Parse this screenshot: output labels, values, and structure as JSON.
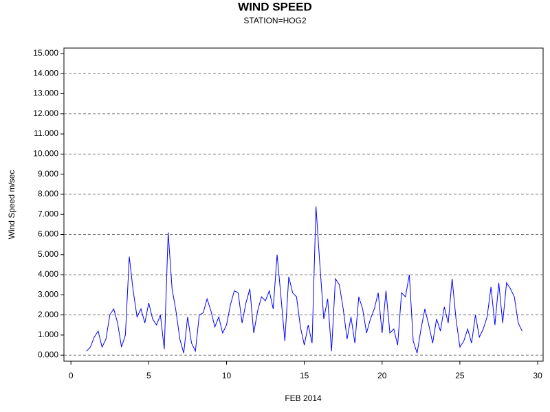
{
  "chart_data": {
    "type": "line",
    "title": "WIND SPEED",
    "subtitle": "STATION=HOG2",
    "x_label": "FEB 2014",
    "y_label": "Wind Speed m/sec",
    "x": [
      1.0,
      1.25,
      1.5,
      1.75,
      2.0,
      2.25,
      2.5,
      2.75,
      3.0,
      3.25,
      3.5,
      3.75,
      4.0,
      4.25,
      4.5,
      4.75,
      5.0,
      5.25,
      5.5,
      5.75,
      6.0,
      6.25,
      6.5,
      6.75,
      7.0,
      7.25,
      7.5,
      7.75,
      8.0,
      8.25,
      8.5,
      8.75,
      9.0,
      9.25,
      9.5,
      9.75,
      10.0,
      10.25,
      10.5,
      10.75,
      11.0,
      11.25,
      11.5,
      11.75,
      12.0,
      12.25,
      12.5,
      12.75,
      13.0,
      13.25,
      13.5,
      13.75,
      14.0,
      14.25,
      14.5,
      14.75,
      15.0,
      15.25,
      15.5,
      15.75,
      16.0,
      16.25,
      16.5,
      16.75,
      17.0,
      17.25,
      17.5,
      17.75,
      18.0,
      18.25,
      18.5,
      18.75,
      19.0,
      19.25,
      19.5,
      19.75,
      20.0,
      20.25,
      20.5,
      20.75,
      21.0,
      21.25,
      21.5,
      21.75,
      22.0,
      22.25,
      22.5,
      22.75,
      23.0,
      23.25,
      23.5,
      23.75,
      24.0,
      24.25,
      24.5,
      24.75,
      25.0,
      25.25,
      25.5,
      25.75,
      26.0,
      26.25,
      26.5,
      26.75,
      27.0,
      27.25,
      27.5,
      27.75,
      28.0,
      28.25,
      28.5,
      28.75,
      29.0
    ],
    "series": [
      {
        "name": "Wind Speed",
        "color": "#0000ff",
        "values": [
          0.2,
          0.4,
          0.9,
          1.2,
          0.4,
          0.8,
          2.0,
          2.3,
          1.6,
          0.4,
          1.0,
          4.9,
          3.2,
          1.9,
          2.3,
          1.6,
          2.6,
          1.8,
          1.5,
          2.0,
          0.3,
          6.1,
          3.3,
          2.2,
          0.8,
          0.1,
          1.9,
          0.6,
          0.2,
          2.0,
          2.1,
          2.8,
          2.2,
          1.4,
          1.9,
          1.1,
          1.5,
          2.5,
          3.2,
          3.1,
          1.6,
          2.6,
          3.3,
          1.1,
          2.2,
          2.9,
          2.7,
          3.2,
          2.3,
          5.0,
          2.9,
          0.7,
          3.9,
          3.1,
          2.9,
          1.4,
          0.5,
          1.5,
          0.6,
          7.4,
          4.5,
          1.8,
          2.8,
          0.2,
          3.8,
          3.5,
          2.3,
          0.8,
          1.9,
          0.6,
          2.9,
          2.3,
          1.1,
          1.8,
          2.3,
          3.1,
          1.1,
          3.2,
          1.1,
          1.3,
          0.5,
          3.1,
          2.9,
          4.0,
          0.7,
          0.1,
          1.3,
          2.3,
          1.5,
          0.6,
          1.8,
          1.2,
          2.4,
          1.6,
          3.8,
          1.8,
          0.4,
          0.7,
          1.3,
          0.6,
          2.0,
          0.9,
          1.3,
          1.9,
          3.4,
          1.5,
          3.6,
          1.6,
          3.6,
          3.3,
          2.9,
          1.6,
          1.2
        ]
      }
    ],
    "xlim": [
      -0.45,
      30.35
    ],
    "xticks": [
      0,
      5,
      10,
      15,
      20,
      25,
      30
    ],
    "ylim": [
      -0.3,
      15.27
    ],
    "yticks": [
      {
        "value": 0,
        "label": "0.000"
      },
      {
        "value": 1,
        "label": "1.000"
      },
      {
        "value": 2,
        "label": "2.000"
      },
      {
        "value": 3,
        "label": "3.000"
      },
      {
        "value": 4,
        "label": "4.000"
      },
      {
        "value": 5,
        "label": "5.000"
      },
      {
        "value": 6,
        "label": "6.000"
      },
      {
        "value": 7,
        "label": "7.000"
      },
      {
        "value": 8,
        "label": "8.000"
      },
      {
        "value": 9,
        "label": "9.000"
      },
      {
        "value": 10,
        "label": "10.000"
      },
      {
        "value": 11,
        "label": "11.000"
      },
      {
        "value": 12,
        "label": "12.000"
      },
      {
        "value": 13,
        "label": "13.000"
      },
      {
        "value": 14,
        "label": "14.000"
      },
      {
        "value": 15,
        "label": "15.000"
      }
    ],
    "grid": true
  }
}
